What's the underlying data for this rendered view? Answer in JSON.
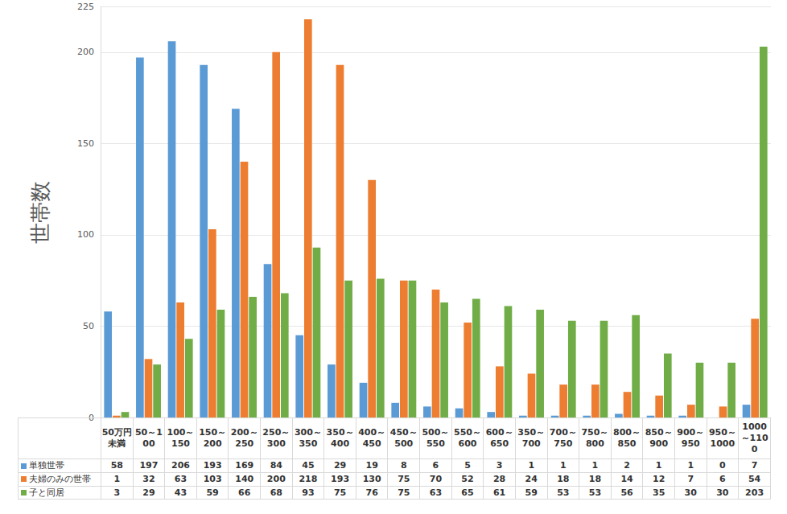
{
  "chart_data": {
    "type": "bar",
    "y_label": "世帯数",
    "categories": [
      "50万円未満",
      "50～100",
      "100～150",
      "150～200",
      "200～250",
      "250～300",
      "300～350",
      "350～400",
      "400～450",
      "450～500",
      "500～550",
      "550～600",
      "600～650",
      "350～700",
      "700～750",
      "750～800",
      "800～850",
      "850～900",
      "900～950",
      "950～1000",
      "1000～1100"
    ],
    "series": [
      {
        "name": "単独世帯",
        "color": "#5b9bd5",
        "values": [
          58,
          197,
          206,
          193,
          169,
          84,
          45,
          29,
          19,
          8,
          6,
          5,
          3,
          1,
          1,
          1,
          2,
          1,
          1,
          0,
          7
        ]
      },
      {
        "name": "夫婦のみの世帯",
        "color": "#ed7d31",
        "values": [
          1,
          32,
          63,
          103,
          140,
          200,
          218,
          193,
          130,
          75,
          70,
          52,
          28,
          24,
          18,
          18,
          14,
          12,
          7,
          6,
          54
        ]
      },
      {
        "name": "子と同居",
        "color": "#70ad47",
        "values": [
          3,
          29,
          43,
          59,
          66,
          68,
          93,
          75,
          76,
          75,
          63,
          65,
          61,
          59,
          53,
          53,
          56,
          35,
          30,
          30,
          203
        ]
      }
    ],
    "ylim": [
      0,
      225
    ],
    "yticks": [
      0,
      50,
      100,
      150,
      200
    ],
    "grid": true
  }
}
